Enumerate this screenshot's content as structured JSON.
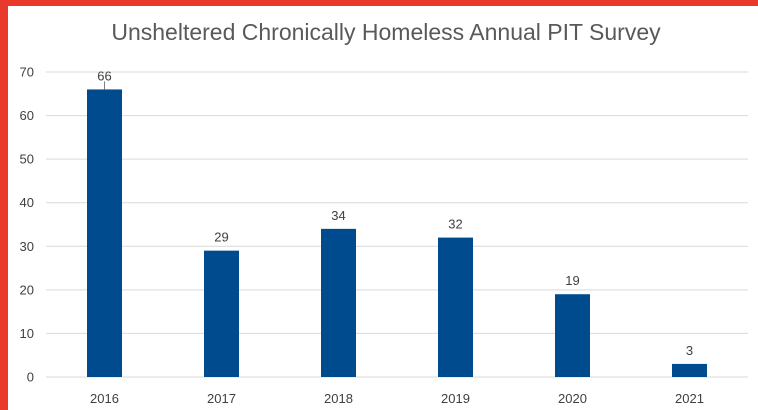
{
  "chart_data": {
    "type": "bar",
    "title": "Unsheltered Chronically Homeless Annual PIT Survey",
    "xlabel": "",
    "ylabel": "",
    "categories": [
      "2016",
      "2017",
      "2018",
      "2019",
      "2020",
      "2021"
    ],
    "values": [
      66,
      29,
      34,
      32,
      19,
      3
    ],
    "data_labels": [
      "66",
      "29",
      "34",
      "32",
      "19",
      "3"
    ],
    "ylim": [
      0,
      70
    ],
    "yticks": [
      "0",
      "10",
      "20",
      "30",
      "40",
      "50",
      "60",
      "70"
    ],
    "grid": true,
    "legend": "none",
    "bar_color": "#004b8d",
    "frame_color": "#e8392b"
  }
}
